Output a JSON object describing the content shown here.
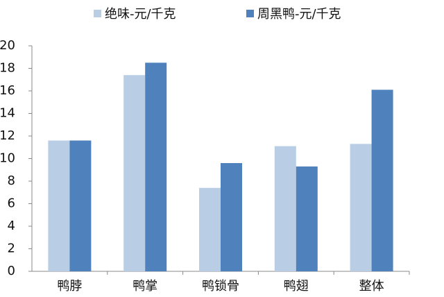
{
  "chart_data": {
    "type": "bar",
    "categories": [
      "鸭脖",
      "鸭掌",
      "鸭锁骨",
      "鸭翅",
      "整体"
    ],
    "series": [
      {
        "name": "绝味-元/千克",
        "color": "#b9cde5",
        "values": [
          11.6,
          17.4,
          7.4,
          11.1,
          11.3
        ]
      },
      {
        "name": "周黑鸭-元/千克",
        "color": "#4f81bd",
        "values": [
          11.6,
          18.5,
          9.6,
          9.3,
          16.1
        ]
      }
    ],
    "ylim": [
      0,
      20
    ],
    "yticks": [
      0,
      2,
      4,
      6,
      8,
      10,
      12,
      14,
      16,
      18,
      20
    ],
    "grid": false
  }
}
